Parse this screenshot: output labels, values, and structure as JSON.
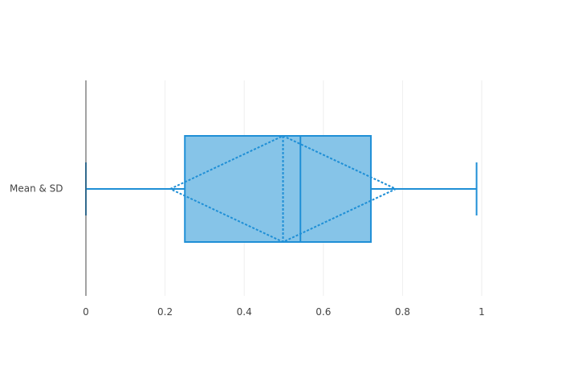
{
  "chart_data": {
    "type": "box",
    "orientation": "horizontal",
    "categories": [
      "Mean & SD"
    ],
    "series": [
      {
        "name": "Mean & SD",
        "min": 0.0,
        "q1": 0.25,
        "median": 0.542,
        "q3": 0.72,
        "max": 0.987,
        "mean": 0.498,
        "sd": 0.285
      }
    ],
    "x_ticks": [
      0,
      0.2,
      0.4,
      0.6,
      0.8,
      1
    ],
    "x_tick_labels": [
      "0",
      "0.2",
      "0.4",
      "0.6",
      "0.8",
      "1"
    ],
    "xlim": [
      0,
      1
    ],
    "grid": true,
    "title": "",
    "xlabel": "",
    "ylabel": "",
    "colors": {
      "line": "#1f8fd6",
      "fill": "#86c4e8",
      "grid": "#eeeeee",
      "zeroline": "#444444",
      "text": "#444444"
    }
  }
}
